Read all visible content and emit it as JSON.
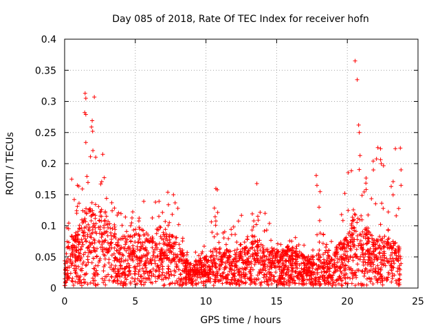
{
  "chart_data": {
    "type": "scatter",
    "title": "Day 085 of 2018, Rate Of TEC Index for receiver hofn",
    "xlabel": "GPS time / hours",
    "ylabel": "ROTI / TECUs",
    "xlim": [
      0,
      25
    ],
    "ylim": [
      0,
      0.4
    ],
    "x_ticks": [
      "0",
      "5",
      "10",
      "15",
      "20",
      "25"
    ],
    "y_ticks": [
      "0",
      "0.05",
      "0.1",
      "0.15",
      "0.2",
      "0.25",
      "0.3",
      "0.35",
      "0.4"
    ],
    "grid": true,
    "marker": "+",
    "color": "#ff0000",
    "series": [
      {
        "name": "ROTI",
        "envelope": {
          "hours": [
            0.0,
            0.25,
            0.5,
            1.0,
            1.5,
            2.0,
            2.5,
            3.0,
            3.5,
            4.0,
            4.5,
            5.0,
            5.5,
            6.0,
            6.5,
            7.0,
            7.5,
            8.0,
            8.5,
            9.0,
            9.5,
            10.0,
            10.5,
            11.0,
            11.5,
            12.0,
            12.5,
            13.0,
            13.5,
            14.0,
            14.5,
            15.0,
            15.5,
            16.0,
            16.5,
            17.0,
            17.5,
            18.0,
            18.5,
            19.0,
            19.5,
            20.0,
            20.5,
            21.0,
            21.5,
            22.0,
            22.5,
            23.0,
            23.5,
            23.8
          ],
          "typical_roti": [
            0.04,
            0.06,
            0.07,
            0.08,
            0.11,
            0.12,
            0.11,
            0.1,
            0.08,
            0.07,
            0.07,
            0.08,
            0.08,
            0.07,
            0.08,
            0.08,
            0.07,
            0.07,
            0.04,
            0.03,
            0.04,
            0.04,
            0.05,
            0.06,
            0.05,
            0.05,
            0.06,
            0.07,
            0.07,
            0.06,
            0.05,
            0.05,
            0.05,
            0.06,
            0.05,
            0.04,
            0.04,
            0.05,
            0.04,
            0.05,
            0.06,
            0.07,
            0.1,
            0.1,
            0.08,
            0.07,
            0.07,
            0.07,
            0.06,
            0.05
          ],
          "peak_roti": [
            0.07,
            0.13,
            0.18,
            0.17,
            0.31,
            0.3,
            0.21,
            0.16,
            0.13,
            0.12,
            0.13,
            0.14,
            0.14,
            0.14,
            0.14,
            0.16,
            0.15,
            0.14,
            0.06,
            0.06,
            0.06,
            0.07,
            0.16,
            0.12,
            0.1,
            0.1,
            0.12,
            0.13,
            0.12,
            0.17,
            0.11,
            0.09,
            0.09,
            0.1,
            0.08,
            0.08,
            0.07,
            0.18,
            0.09,
            0.1,
            0.11,
            0.2,
            0.36,
            0.2,
            0.19,
            0.22,
            0.24,
            0.22,
            0.22,
            0.19
          ]
        },
        "highlights": [
          {
            "hour": 1.45,
            "roti": 0.313
          },
          {
            "hour": 1.5,
            "roti": 0.305
          },
          {
            "hour": 1.42,
            "roti": 0.282
          },
          {
            "hour": 1.5,
            "roti": 0.279
          },
          {
            "hour": 2.1,
            "roti": 0.307
          },
          {
            "hour": 1.95,
            "roti": 0.269
          },
          {
            "hour": 1.98,
            "roti": 0.252
          },
          {
            "hour": 1.5,
            "roti": 0.234
          },
          {
            "hour": 2.0,
            "roti": 0.221
          },
          {
            "hour": 2.7,
            "roti": 0.215
          },
          {
            "hour": 10.7,
            "roti": 0.16
          },
          {
            "hour": 10.8,
            "roti": 0.158
          },
          {
            "hour": 13.6,
            "roti": 0.168
          },
          {
            "hour": 17.8,
            "roti": 0.181
          },
          {
            "hour": 17.85,
            "roti": 0.165
          },
          {
            "hour": 18.0,
            "roti": 0.13
          },
          {
            "hour": 20.55,
            "roti": 0.365
          },
          {
            "hour": 20.7,
            "roti": 0.335
          },
          {
            "hour": 20.8,
            "roti": 0.262
          },
          {
            "hour": 20.85,
            "roti": 0.25
          },
          {
            "hour": 20.9,
            "roti": 0.213
          },
          {
            "hour": 22.35,
            "roti": 0.224
          },
          {
            "hour": 22.4,
            "roti": 0.2
          },
          {
            "hour": 23.4,
            "roti": 0.224
          },
          {
            "hour": 23.75,
            "roti": 0.225
          },
          {
            "hour": 23.8,
            "roti": 0.19
          },
          {
            "hour": 23.8,
            "roti": 0.165
          },
          {
            "hour": 7.3,
            "roti": 0.154
          },
          {
            "hour": 7.7,
            "roti": 0.15
          },
          {
            "hour": 0.5,
            "roti": 0.175
          },
          {
            "hour": 0.9,
            "roti": 0.165
          }
        ]
      }
    ]
  }
}
